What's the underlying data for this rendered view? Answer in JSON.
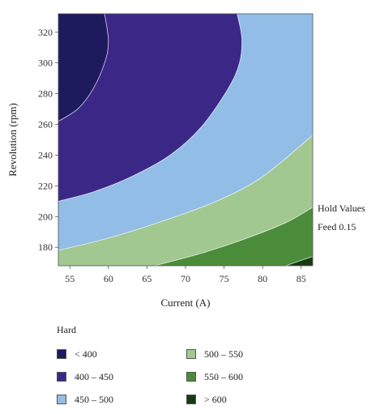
{
  "chart_data": {
    "type": "contour",
    "xlabel": "Current (A)",
    "ylabel": "Revolution (rpm)",
    "xlim": [
      53.5,
      86.5
    ],
    "ylim": [
      168,
      332
    ],
    "x_ticks": [
      55,
      60,
      65,
      70,
      75,
      80,
      85
    ],
    "y_ticks": [
      180,
      200,
      220,
      240,
      260,
      280,
      300,
      320
    ],
    "legend_title": "Hard",
    "levels": [
      {
        "label": "< 400",
        "color": "#1e1a5e"
      },
      {
        "label": "400 – 450",
        "color": "#3b2886"
      },
      {
        "label": "450 – 500",
        "color": "#92bde6"
      },
      {
        "label": "500 – 550",
        "color": "#a2c892"
      },
      {
        "label": "550 – 600",
        "color": "#4b8c3a"
      },
      {
        "label": "> 600",
        "color": "#173a12"
      }
    ],
    "boundaries": [
      {
        "between": "< 400 | 400 – 450",
        "points": [
          [
            53.5,
            262
          ],
          [
            56,
            270
          ],
          [
            58,
            283
          ],
          [
            59.5,
            300
          ],
          [
            60,
            314
          ],
          [
            59.5,
            332
          ]
        ]
      },
      {
        "between": "400 – 450 | 450 – 500",
        "points": [
          [
            53.5,
            210
          ],
          [
            58,
            216
          ],
          [
            63,
            226
          ],
          [
            68,
            240
          ],
          [
            72,
            258
          ],
          [
            75.5,
            283
          ],
          [
            77,
            300
          ],
          [
            77.3,
            316
          ],
          [
            76.7,
            332
          ]
        ]
      },
      {
        "between": "450 – 500 | 500 – 550",
        "points": [
          [
            53.5,
            178
          ],
          [
            60,
            186
          ],
          [
            67,
            197
          ],
          [
            74,
            210
          ],
          [
            80,
            226
          ],
          [
            86.5,
            253
          ]
        ]
      },
      {
        "between": "500 – 550 | 550 – 600",
        "points": [
          [
            66,
            168
          ],
          [
            72,
            176
          ],
          [
            78,
            186
          ],
          [
            83,
            196
          ],
          [
            86.5,
            206
          ]
        ]
      },
      {
        "between": "550 – 600 | > 600",
        "points": [
          [
            83,
            168
          ],
          [
            85,
            171.5
          ],
          [
            86.5,
            174
          ]
        ]
      }
    ],
    "hold_values": {
      "title": "Hold Values",
      "feed": "Feed 0.15"
    }
  }
}
